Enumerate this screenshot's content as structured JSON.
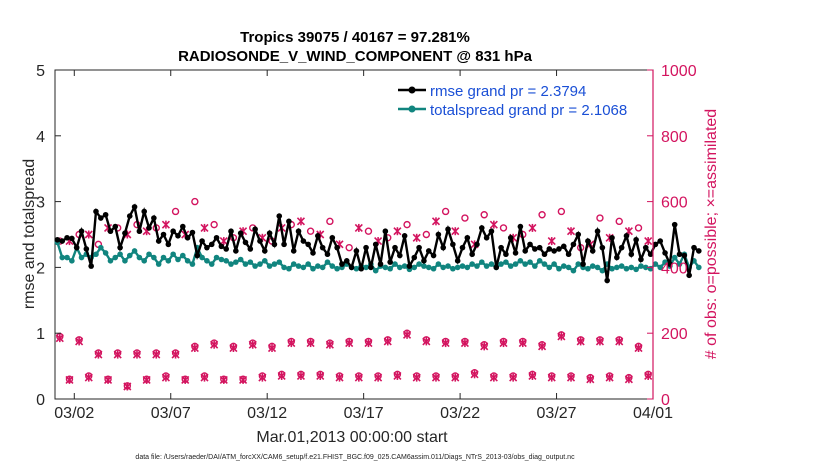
{
  "chart_data": {
    "type": "line",
    "title_line1": "Tropics 39075 / 40167 = 97.281%",
    "title_line2": "RADIOSONDE_V_WIND_COMPONENT @ 831 hPa",
    "xlabel": "Mar.01,2013 00:00:00 start",
    "ylabel_left": "rmse and totalspread",
    "ylabel_right": "# of obs: o=possible; ×=assimilated",
    "footnote": "data file: /Users/raeder/DAI/ATM_forcXX/CAM6_setup/f.e21.FHIST_BGC.f09_025.CAM6assim.011/Diags_NTrS_2013-03/obs_diag_output.nc",
    "xlim": [
      0,
      31
    ],
    "ylim_left": [
      0,
      5
    ],
    "ylim_right": [
      0,
      1000
    ],
    "x_ticks": [
      1,
      6,
      11,
      16,
      21,
      26,
      31
    ],
    "x_tick_labels": [
      "03/02",
      "03/07",
      "03/12",
      "03/17",
      "03/22",
      "03/27",
      "04/01"
    ],
    "y_ticks_left": [
      "0",
      "1",
      "2",
      "3",
      "4",
      "5"
    ],
    "y_ticks_right": [
      "0",
      "200",
      "400",
      "600",
      "800",
      "1000"
    ],
    "x_start": 0.125,
    "x_step": 0.25,
    "series": [
      {
        "name": "rmse grand pr = 2.3794",
        "color": "#000000",
        "axis": "left",
        "values": [
          2.42,
          2.4,
          2.45,
          2.44,
          2.3,
          2.55,
          2.28,
          2.02,
          2.85,
          2.75,
          2.8,
          2.55,
          2.62,
          2.3,
          2.52,
          2.78,
          2.92,
          2.55,
          2.85,
          2.6,
          2.75,
          2.4,
          2.5,
          2.35,
          2.55,
          2.48,
          2.62,
          2.45,
          2.53,
          2.18,
          2.4,
          2.3,
          2.35,
          2.45,
          2.32,
          2.28,
          2.55,
          2.25,
          2.52,
          2.38,
          2.28,
          2.58,
          2.4,
          2.25,
          2.52,
          2.35,
          2.78,
          2.35,
          2.7,
          2.25,
          2.55,
          2.4,
          2.35,
          2.22,
          2.48,
          2.3,
          2.2,
          2.45,
          2.3,
          2.05,
          2.1,
          2.0,
          2.25,
          1.98,
          2.3,
          2.0,
          2.35,
          2.05,
          2.55,
          2.08,
          2.3,
          2.18,
          2.48,
          2.02,
          2.15,
          2.3,
          2.1,
          2.25,
          2.18,
          2.5,
          2.3,
          2.58,
          2.35,
          2.1,
          2.3,
          2.45,
          2.2,
          2.35,
          2.6,
          2.45,
          2.55,
          2.0,
          2.3,
          2.2,
          2.45,
          2.22,
          2.62,
          2.25,
          2.35,
          2.28,
          2.3,
          2.2,
          2.28,
          2.25,
          2.28,
          2.32,
          2.2,
          2.35,
          2.5,
          2.05,
          2.4,
          2.25,
          2.55,
          2.3,
          1.8,
          2.45,
          2.15,
          2.3,
          2.48,
          2.2,
          2.42,
          2.12,
          2.3,
          2.2,
          2.35,
          2.4,
          2.22,
          2.05,
          2.65,
          2.2,
          2.18,
          1.88,
          2.3,
          2.25
        ]
      },
      {
        "name": "totalspread grand pr = 2.1068",
        "color": "#11857f",
        "axis": "left",
        "values": [
          2.38,
          2.15,
          2.15,
          2.1,
          2.3,
          2.15,
          2.2,
          2.15,
          2.2,
          2.3,
          2.22,
          2.1,
          2.15,
          2.2,
          2.1,
          2.18,
          2.25,
          2.15,
          2.1,
          2.2,
          2.15,
          2.05,
          2.15,
          2.1,
          2.2,
          2.12,
          2.18,
          2.1,
          2.05,
          2.3,
          2.15,
          2.1,
          2.05,
          2.15,
          2.12,
          2.1,
          2.05,
          2.08,
          2.12,
          2.05,
          2.08,
          2.02,
          2.05,
          2.1,
          2.02,
          2.05,
          2.08,
          2.0,
          1.98,
          2.05,
          2.02,
          2.0,
          2.05,
          1.98,
          2.02,
          2.0,
          2.08,
          2.02,
          1.98,
          2.0,
          2.05,
          2.0,
          1.98,
          2.02,
          2.0,
          2.05,
          1.95,
          2.02,
          2.0,
          1.98,
          2.05,
          2.0,
          2.02,
          1.97,
          2.0,
          2.05,
          2.02,
          2.0,
          1.98,
          2.05,
          2.0,
          2.02,
          1.98,
          2.0,
          2.02,
          2.0,
          2.05,
          2.02,
          2.08,
          2.02,
          2.05,
          2.0,
          2.05,
          2.08,
          2.02,
          2.05,
          2.1,
          2.05,
          2.08,
          2.02,
          2.1,
          2.05,
          2.0,
          2.05,
          1.98,
          2.02,
          2.0,
          1.95,
          2.05,
          2.0,
          1.98,
          2.02,
          2.0,
          1.95,
          2.05,
          1.98,
          2.0,
          2.02,
          1.98,
          2.0,
          1.97,
          2.02,
          2.0,
          1.98,
          2.05,
          2.0,
          2.08,
          2.02,
          2.15,
          2.05,
          2.2,
          2.0,
          2.1,
          2.0
        ]
      }
    ],
    "obs_possible": {
      "name": "possible",
      "marker": "o",
      "color": "#d3145f",
      "axis": "right",
      "points": [
        [
          0.25,
          190
        ],
        [
          0.75,
          60
        ],
        [
          1.25,
          180
        ],
        [
          1.75,
          70
        ],
        [
          2.25,
          140
        ],
        [
          2.75,
          60
        ],
        [
          3.25,
          140
        ],
        [
          3.75,
          40
        ],
        [
          4.25,
          140
        ],
        [
          4.75,
          60
        ],
        [
          5.25,
          140
        ],
        [
          5.75,
          70
        ],
        [
          6.25,
          140
        ],
        [
          6.75,
          60
        ],
        [
          7.25,
          160
        ],
        [
          7.75,
          70
        ],
        [
          8.25,
          170
        ],
        [
          8.75,
          60
        ],
        [
          9.25,
          160
        ],
        [
          9.75,
          60
        ],
        [
          10.25,
          170
        ],
        [
          10.75,
          70
        ],
        [
          11.25,
          160
        ],
        [
          11.75,
          75
        ],
        [
          12.25,
          175
        ],
        [
          12.75,
          75
        ],
        [
          13.25,
          175
        ],
        [
          13.75,
          75
        ],
        [
          14.25,
          170
        ],
        [
          14.75,
          70
        ],
        [
          15.25,
          175
        ],
        [
          15.75,
          70
        ],
        [
          16.25,
          175
        ],
        [
          16.75,
          70
        ],
        [
          17.25,
          180
        ],
        [
          17.75,
          75
        ],
        [
          18.25,
          200
        ],
        [
          18.75,
          70
        ],
        [
          19.25,
          180
        ],
        [
          19.75,
          70
        ],
        [
          20.25,
          175
        ],
        [
          20.75,
          70
        ],
        [
          21.25,
          175
        ],
        [
          21.75,
          80
        ],
        [
          22.25,
          165
        ],
        [
          22.75,
          70
        ],
        [
          23.25,
          175
        ],
        [
          23.75,
          70
        ],
        [
          24.25,
          175
        ],
        [
          24.75,
          75
        ],
        [
          25.25,
          165
        ],
        [
          25.75,
          70
        ],
        [
          26.25,
          195
        ],
        [
          26.75,
          70
        ],
        [
          27.25,
          180
        ],
        [
          27.75,
          65
        ],
        [
          28.25,
          180
        ],
        [
          28.75,
          70
        ],
        [
          29.25,
          180
        ],
        [
          29.75,
          65
        ],
        [
          30.25,
          160
        ],
        [
          30.75,
          75
        ],
        [
          0.25,
          480
        ],
        [
          1.25,
          500
        ],
        [
          2.25,
          470
        ],
        [
          3.25,
          520
        ],
        [
          4.25,
          530
        ],
        [
          5.25,
          520
        ],
        [
          6.25,
          570
        ],
        [
          7.25,
          600
        ],
        [
          8.25,
          530
        ],
        [
          9.25,
          490
        ],
        [
          10.25,
          520
        ],
        [
          11.25,
          480
        ],
        [
          12.25,
          530
        ],
        [
          13.25,
          510
        ],
        [
          14.25,
          540
        ],
        [
          15.25,
          460
        ],
        [
          16.25,
          510
        ],
        [
          17.25,
          490
        ],
        [
          18.25,
          530
        ],
        [
          19.25,
          500
        ],
        [
          20.25,
          570
        ],
        [
          21.25,
          550
        ],
        [
          22.25,
          560
        ],
        [
          23.25,
          520
        ],
        [
          24.25,
          500
        ],
        [
          25.25,
          560
        ],
        [
          26.25,
          570
        ],
        [
          27.25,
          460
        ],
        [
          28.25,
          550
        ],
        [
          29.25,
          540
        ],
        [
          30.25,
          520
        ]
      ]
    },
    "obs_assimilated": {
      "name": "assimilated",
      "marker": "x",
      "color": "#d3145f",
      "axis": "right",
      "points": [
        [
          0.25,
          185
        ],
        [
          0.75,
          58
        ],
        [
          1.25,
          175
        ],
        [
          1.75,
          65
        ],
        [
          2.25,
          135
        ],
        [
          2.75,
          58
        ],
        [
          3.25,
          135
        ],
        [
          3.75,
          38
        ],
        [
          4.25,
          135
        ],
        [
          4.75,
          58
        ],
        [
          5.25,
          135
        ],
        [
          5.75,
          65
        ],
        [
          6.25,
          135
        ],
        [
          6.75,
          58
        ],
        [
          7.25,
          155
        ],
        [
          7.75,
          65
        ],
        [
          8.25,
          165
        ],
        [
          8.75,
          58
        ],
        [
          9.25,
          155
        ],
        [
          9.75,
          58
        ],
        [
          10.25,
          165
        ],
        [
          10.75,
          65
        ],
        [
          11.25,
          155
        ],
        [
          11.75,
          70
        ],
        [
          12.25,
          170
        ],
        [
          12.75,
          70
        ],
        [
          13.25,
          170
        ],
        [
          13.75,
          70
        ],
        [
          14.25,
          165
        ],
        [
          14.75,
          65
        ],
        [
          15.25,
          170
        ],
        [
          15.75,
          65
        ],
        [
          16.25,
          170
        ],
        [
          16.75,
          65
        ],
        [
          17.25,
          175
        ],
        [
          17.75,
          70
        ],
        [
          18.25,
          195
        ],
        [
          18.75,
          65
        ],
        [
          19.25,
          175
        ],
        [
          19.75,
          65
        ],
        [
          20.25,
          170
        ],
        [
          20.75,
          65
        ],
        [
          21.25,
          170
        ],
        [
          21.75,
          75
        ],
        [
          22.25,
          160
        ],
        [
          22.75,
          65
        ],
        [
          23.25,
          170
        ],
        [
          23.75,
          65
        ],
        [
          24.25,
          170
        ],
        [
          24.75,
          70
        ],
        [
          25.25,
          160
        ],
        [
          25.75,
          65
        ],
        [
          26.25,
          190
        ],
        [
          26.75,
          65
        ],
        [
          27.25,
          175
        ],
        [
          27.75,
          60
        ],
        [
          28.25,
          175
        ],
        [
          28.75,
          65
        ],
        [
          29.25,
          175
        ],
        [
          29.75,
          60
        ],
        [
          30.25,
          155
        ],
        [
          30.75,
          70
        ],
        [
          0.75,
          480
        ],
        [
          1.75,
          500
        ],
        [
          2.75,
          520
        ],
        [
          3.75,
          500
        ],
        [
          4.75,
          510
        ],
        [
          5.75,
          530
        ],
        [
          6.75,
          500
        ],
        [
          7.75,
          520
        ],
        [
          8.75,
          480
        ],
        [
          9.75,
          510
        ],
        [
          10.75,
          490
        ],
        [
          11.75,
          520
        ],
        [
          12.75,
          540
        ],
        [
          13.75,
          500
        ],
        [
          14.75,
          470
        ],
        [
          15.75,
          520
        ],
        [
          16.75,
          480
        ],
        [
          17.75,
          510
        ],
        [
          18.75,
          490
        ],
        [
          19.75,
          540
        ],
        [
          20.75,
          510
        ],
        [
          21.75,
          470
        ],
        [
          22.75,
          530
        ],
        [
          23.75,
          490
        ],
        [
          24.75,
          520
        ],
        [
          25.75,
          480
        ],
        [
          26.75,
          510
        ],
        [
          27.75,
          470
        ],
        [
          28.75,
          490
        ],
        [
          29.75,
          510
        ],
        [
          30.75,
          480
        ]
      ]
    }
  }
}
